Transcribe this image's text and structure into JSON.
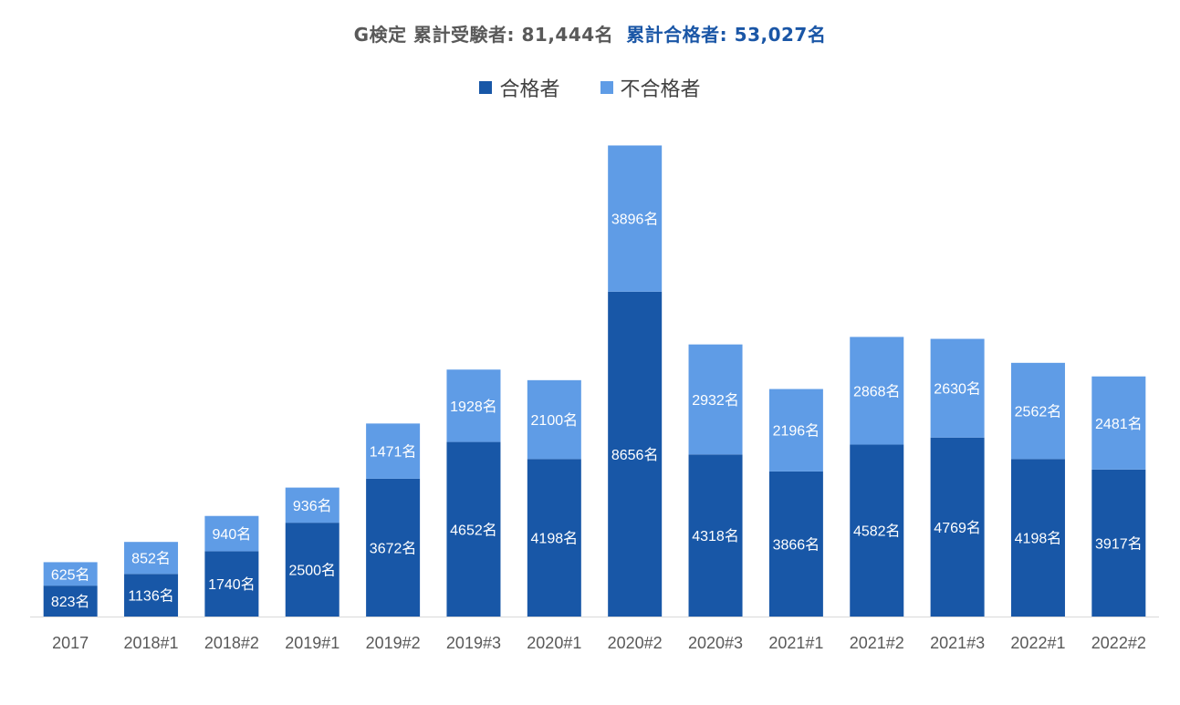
{
  "title": {
    "part1": "G検定 累計受験者: 81,444名",
    "part2": "累計合格者: 53,027名"
  },
  "legend": {
    "pass_label": "合格者",
    "fail_label": "不合格者"
  },
  "colors": {
    "pass": "#1857a7",
    "fail": "#5f9ce6",
    "axis": "#d9d9d9",
    "tick_text": "#595959",
    "label_text": "#ffffff"
  },
  "chart_data": {
    "type": "bar",
    "stacked": true,
    "title": "G検定 累計受験者: 81,444名 累計合格者: 53,027名",
    "categories": [
      "2017",
      "2018#1",
      "2018#2",
      "2019#1",
      "2019#2",
      "2019#3",
      "2020#1",
      "2020#2",
      "2020#3",
      "2021#1",
      "2021#2",
      "2021#3",
      "2022#1",
      "2022#2"
    ],
    "series": [
      {
        "name": "合格者",
        "values": [
          823,
          1136,
          1740,
          2500,
          3672,
          4652,
          4198,
          8656,
          4318,
          3866,
          4582,
          4769,
          4198,
          3917
        ],
        "labels": [
          "823名",
          "1136名",
          "1740名",
          "2500名",
          "3672名",
          "4652名",
          "4198名",
          "8656名",
          "4318名",
          "3866名",
          "4582名",
          "4769名",
          "4198名",
          "3917名"
        ]
      },
      {
        "name": "不合格者",
        "values": [
          625,
          852,
          940,
          936,
          1471,
          1928,
          2100,
          3896,
          2932,
          2196,
          2868,
          2630,
          2562,
          2481
        ],
        "labels": [
          "625名",
          "852名",
          "940名",
          "936名",
          "1471名",
          "1928名",
          "2100名",
          "3896名",
          "2932名",
          "2196名",
          "2868名",
          "2630名",
          "2562名",
          "2481名"
        ]
      }
    ],
    "ylim": [
      0,
      14000
    ],
    "grid": false,
    "legend_position": "top"
  }
}
